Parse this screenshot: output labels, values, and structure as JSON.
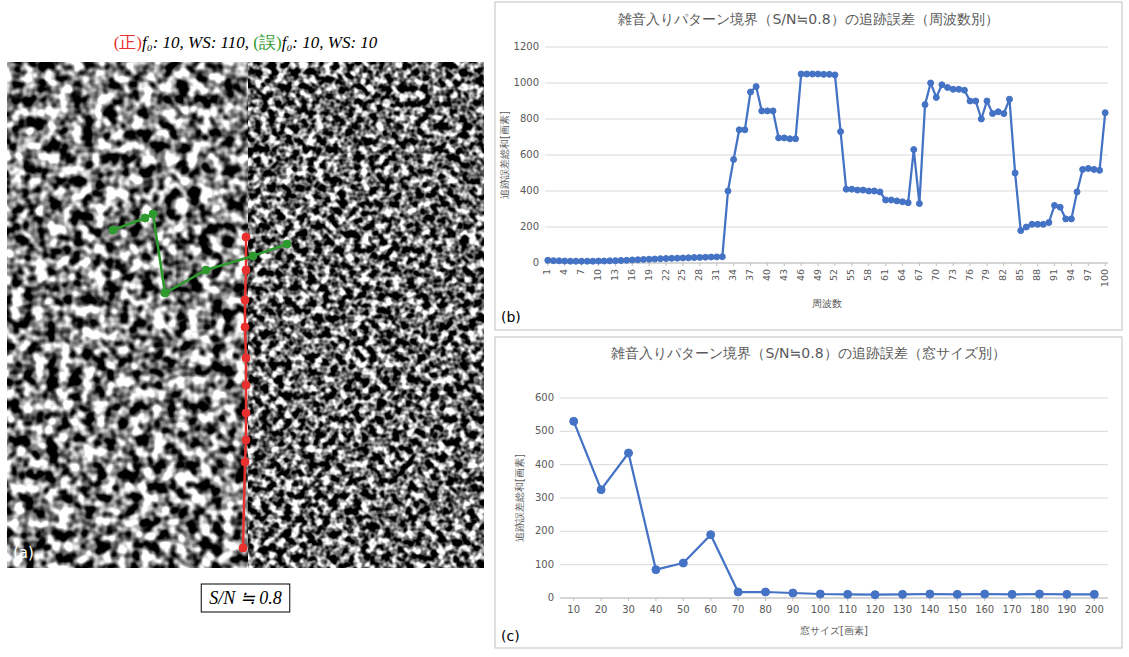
{
  "chart_data": [
    {
      "type": "image",
      "title": "(正)f₀: 10, WS: 110, (誤)f₀: 10, WS: 10",
      "panel_label": "(a)",
      "annotations": [
        "S/N ≒ 0.8"
      ],
      "xlim": [
        0,
        477
      ],
      "ylim": [
        0,
        506
      ],
      "tick_labels": false,
      "series": [
        {
          "name": "(正)",
          "color": "#e8312f",
          "marker": "circle",
          "x": [
            239,
            239,
            238,
            238,
            239,
            239,
            239,
            239,
            238,
            236
          ],
          "values": [
            175,
            208,
            238,
            265,
            296,
            323,
            351,
            378,
            400,
            486
          ]
        },
        {
          "name": "(誤)",
          "color": "#2e9a2e",
          "marker": "circle",
          "x": [
            106,
            138,
            146,
            158,
            199,
            246,
            280
          ],
          "values": [
            168,
            156,
            152,
            231,
            208,
            194,
            182
          ]
        }
      ]
    },
    {
      "type": "line",
      "title": "雑音入りパターン境界（S/N≒0.8）の追跡誤差（周波数別）",
      "x_label": "周波数",
      "y_label": "追跡誤差総和[画素]",
      "panel_label": "(b)",
      "color": "#4472c4",
      "marker": "circle",
      "grid": true,
      "x": [
        1,
        2,
        3,
        4,
        5,
        6,
        7,
        8,
        9,
        10,
        11,
        12,
        13,
        14,
        15,
        16,
        17,
        18,
        19,
        20,
        21,
        22,
        23,
        24,
        25,
        26,
        27,
        28,
        29,
        30,
        31,
        32,
        33,
        34,
        35,
        36,
        37,
        38,
        39,
        40,
        41,
        42,
        43,
        44,
        45,
        46,
        47,
        48,
        49,
        50,
        51,
        52,
        53,
        54,
        55,
        56,
        57,
        58,
        59,
        60,
        61,
        62,
        63,
        64,
        65,
        66,
        67,
        68,
        69,
        70,
        71,
        72,
        73,
        74,
        75,
        76,
        77,
        78,
        79,
        80,
        81,
        82,
        83,
        84,
        85,
        86,
        87,
        88,
        89,
        90,
        91,
        92,
        93,
        94,
        95,
        96,
        97,
        98,
        99,
        100
      ],
      "values": [
        15,
        13,
        12,
        11,
        10,
        10,
        10,
        10,
        10,
        11,
        11,
        12,
        13,
        14,
        15,
        17,
        18,
        20,
        21,
        22,
        24,
        25,
        26,
        27,
        28,
        29,
        30,
        31,
        32,
        33,
        34,
        35,
        400,
        575,
        740,
        740,
        950,
        980,
        845,
        845,
        845,
        695,
        695,
        690,
        690,
        1050,
        1050,
        1050,
        1050,
        1048,
        1048,
        1045,
        730,
        410,
        410,
        405,
        405,
        400,
        400,
        395,
        350,
        350,
        345,
        340,
        335,
        630,
        330,
        880,
        1000,
        920,
        990,
        975,
        965,
        965,
        960,
        900,
        900,
        800,
        900,
        830,
        840,
        830,
        910,
        500,
        180,
        200,
        215,
        215,
        215,
        225,
        320,
        310,
        245,
        245,
        395,
        520,
        525,
        520,
        515,
        835
      ],
      "xlim": [
        0.5,
        100.5
      ],
      "xticks": [
        1,
        4,
        7,
        10,
        13,
        16,
        19,
        22,
        25,
        28,
        31,
        34,
        37,
        40,
        43,
        46,
        49,
        52,
        55,
        58,
        61,
        64,
        67,
        70,
        73,
        76,
        79,
        82,
        85,
        88,
        91,
        94,
        97,
        100
      ],
      "ylim": [
        0,
        1200
      ],
      "yticks": [
        0,
        200,
        400,
        600,
        800,
        1000,
        1200
      ]
    },
    {
      "type": "line",
      "title": "雑音入りパターン境界（S/N≒0.8）の追跡誤差（窓サイズ別）",
      "x_label": "窓サイズ[画素]",
      "y_label": "追跡誤差総和[画素]",
      "panel_label": "(c)",
      "color": "#4472c4",
      "marker": "circle",
      "grid": true,
      "x": [
        10,
        20,
        30,
        40,
        50,
        60,
        70,
        80,
        90,
        100,
        110,
        120,
        130,
        140,
        150,
        160,
        170,
        180,
        190,
        200
      ],
      "values": [
        530,
        325,
        435,
        85,
        105,
        190,
        18,
        18,
        15,
        12,
        11,
        10,
        11,
        12,
        11,
        12,
        11,
        12,
        11,
        11
      ],
      "xlim": [
        5,
        205
      ],
      "xticks": [
        10,
        20,
        30,
        40,
        50,
        60,
        70,
        80,
        90,
        100,
        110,
        120,
        130,
        140,
        150,
        160,
        170,
        180,
        190,
        200
      ],
      "ylim": [
        0,
        600
      ],
      "yticks": [
        0,
        100,
        200,
        300,
        400,
        500,
        600
      ]
    }
  ]
}
